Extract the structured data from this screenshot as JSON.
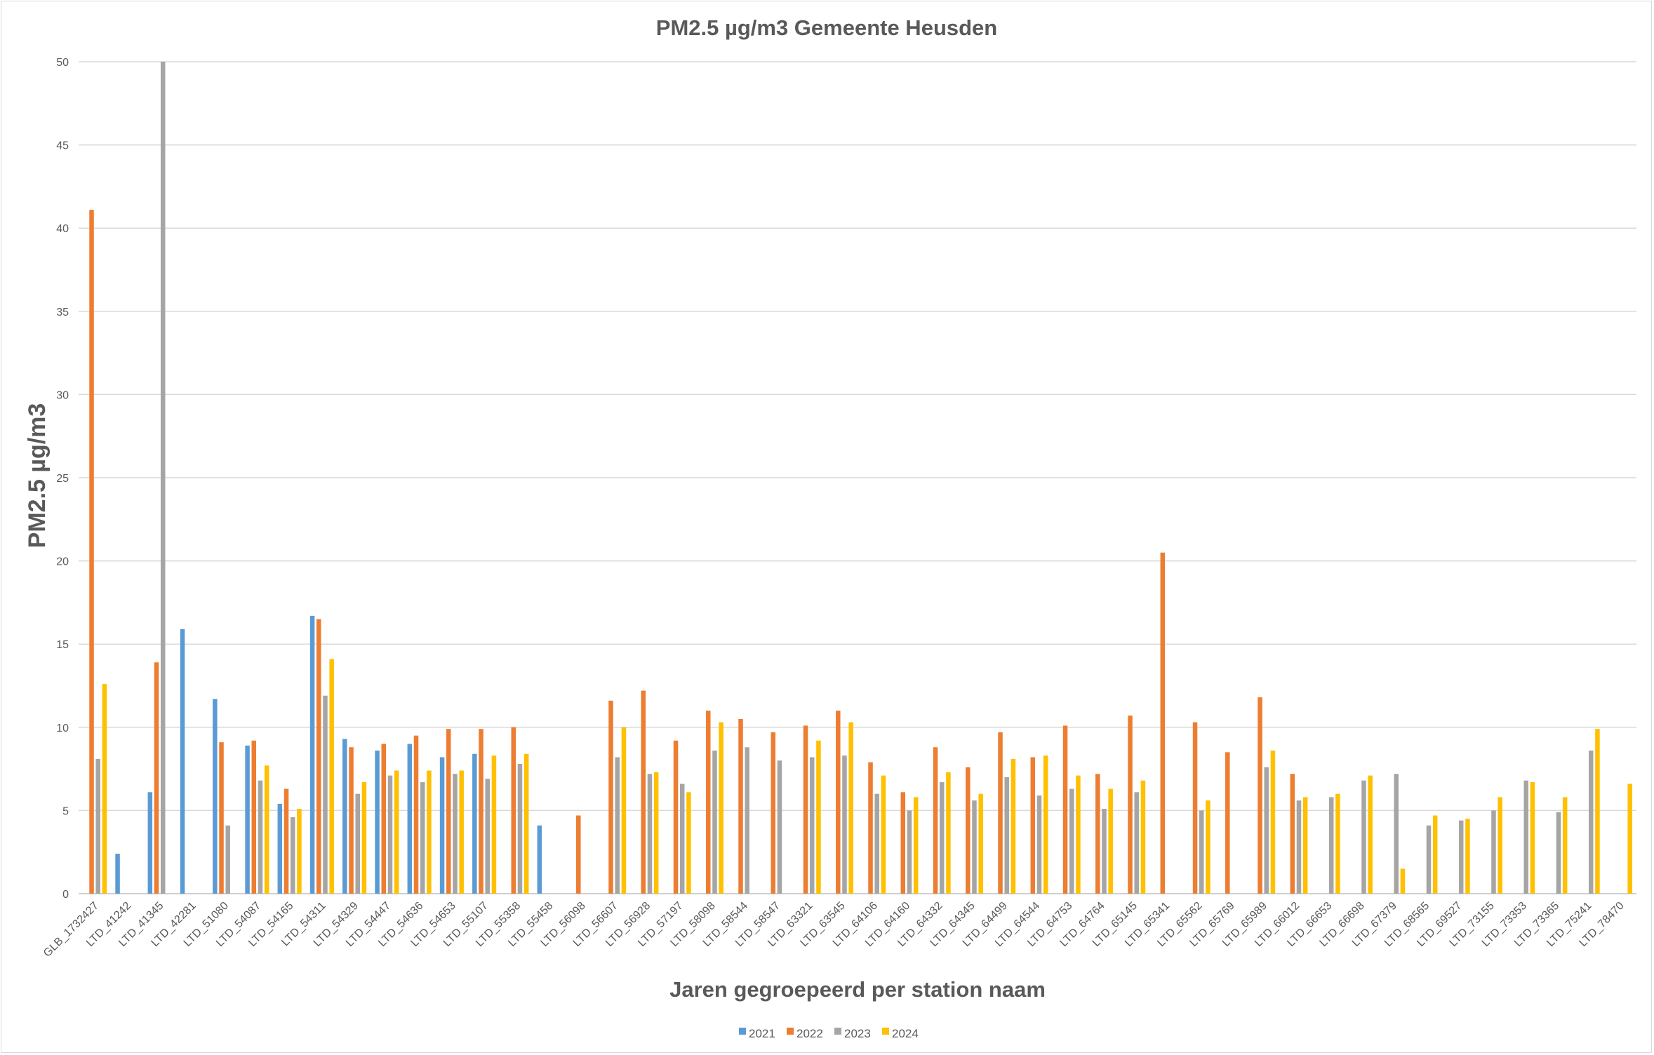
{
  "chart_data": {
    "type": "bar",
    "title": "PM2.5 µg/m3 Gemeente Heusden",
    "xlabel": "Jaren gegroepeerd per station naam",
    "ylabel": "PM2.5 µg/m3",
    "ylim": [
      0,
      50
    ],
    "yticks": [
      "0",
      "5",
      "10",
      "15",
      "20",
      "25",
      "30",
      "35",
      "40",
      "45",
      "50"
    ],
    "grid": true,
    "legend": "bottom",
    "categories": [
      "GLB_1732427",
      "LTD_41242",
      "LTD_41345",
      "LTD_42281",
      "LTD_51080",
      "LTD_54087",
      "LTD_54165",
      "LTD_54311",
      "LTD_54329",
      "LTD_54447",
      "LTD_54636",
      "LTD_54653",
      "LTD_55107",
      "LTD_55358",
      "LTD_55458",
      "LTD_56098",
      "LTD_56607",
      "LTD_56928",
      "LTD_57197",
      "LTD_58098",
      "LTD_58544",
      "LTD_58547",
      "LTD_63321",
      "LTD_63545",
      "LTD_64106",
      "LTD_64160",
      "LTD_64332",
      "LTD_64345",
      "LTD_64499",
      "LTD_64544",
      "LTD_64753",
      "LTD_64764",
      "LTD_65145",
      "LTD_65341",
      "LTD_65562",
      "LTD_65769",
      "LTD_65989",
      "LTD_66012",
      "LTD_66653",
      "LTD_66698",
      "LTD_67379",
      "LTD_68565",
      "LTD_69527",
      "LTD_73155",
      "LTD_73353",
      "LTD_73365",
      "LTD_75241",
      "LTD_78470"
    ],
    "series": [
      {
        "name": "2021",
        "color": "#5b9bd5",
        "values": [
          null,
          2.4,
          6.1,
          15.9,
          11.7,
          8.9,
          5.4,
          16.7,
          9.3,
          8.6,
          9.0,
          8.2,
          8.4,
          null,
          4.1,
          null,
          null,
          null,
          null,
          null,
          null,
          null,
          null,
          null,
          null,
          null,
          null,
          null,
          null,
          null,
          null,
          null,
          null,
          null,
          null,
          null,
          null,
          null,
          null,
          null,
          null,
          null,
          null,
          null,
          null,
          null,
          null,
          null
        ]
      },
      {
        "name": "2022",
        "color": "#ed7d31",
        "values": [
          41.1,
          null,
          13.9,
          null,
          9.1,
          9.2,
          6.3,
          16.5,
          8.8,
          9.0,
          9.5,
          9.9,
          9.9,
          10.0,
          null,
          4.7,
          11.6,
          12.2,
          9.2,
          11.0,
          10.5,
          9.7,
          10.1,
          11.0,
          7.9,
          6.1,
          8.8,
          7.6,
          9.7,
          8.2,
          10.1,
          7.2,
          10.7,
          20.5,
          10.3,
          8.5,
          11.8,
          7.2,
          null,
          null,
          null,
          null,
          null,
          null,
          null,
          null,
          null,
          null
        ]
      },
      {
        "name": "2023",
        "color": "#a5a5a5",
        "values": [
          8.1,
          null,
          50.0,
          null,
          4.1,
          6.8,
          4.6,
          11.9,
          6.0,
          7.1,
          6.7,
          7.2,
          6.9,
          7.8,
          null,
          null,
          8.2,
          7.2,
          6.6,
          8.6,
          8.8,
          8.0,
          8.2,
          8.3,
          6.0,
          5.0,
          6.7,
          5.6,
          7.0,
          5.9,
          6.3,
          5.1,
          6.1,
          null,
          5.0,
          null,
          7.6,
          5.6,
          5.8,
          6.8,
          7.2,
          4.1,
          4.4,
          5.0,
          6.8,
          4.9,
          8.6,
          null
        ]
      },
      {
        "name": "2024",
        "color": "#ffc000",
        "values": [
          12.6,
          null,
          null,
          null,
          null,
          7.7,
          5.1,
          14.1,
          6.7,
          7.4,
          7.4,
          7.4,
          8.3,
          8.4,
          null,
          null,
          10.0,
          7.3,
          6.1,
          10.3,
          null,
          null,
          9.2,
          10.3,
          7.1,
          5.8,
          7.3,
          6.0,
          8.1,
          8.3,
          7.1,
          6.3,
          6.8,
          null,
          5.6,
          null,
          8.6,
          5.8,
          6.0,
          7.1,
          1.5,
          4.7,
          4.5,
          5.8,
          6.7,
          5.8,
          9.9,
          6.6
        ]
      }
    ]
  }
}
